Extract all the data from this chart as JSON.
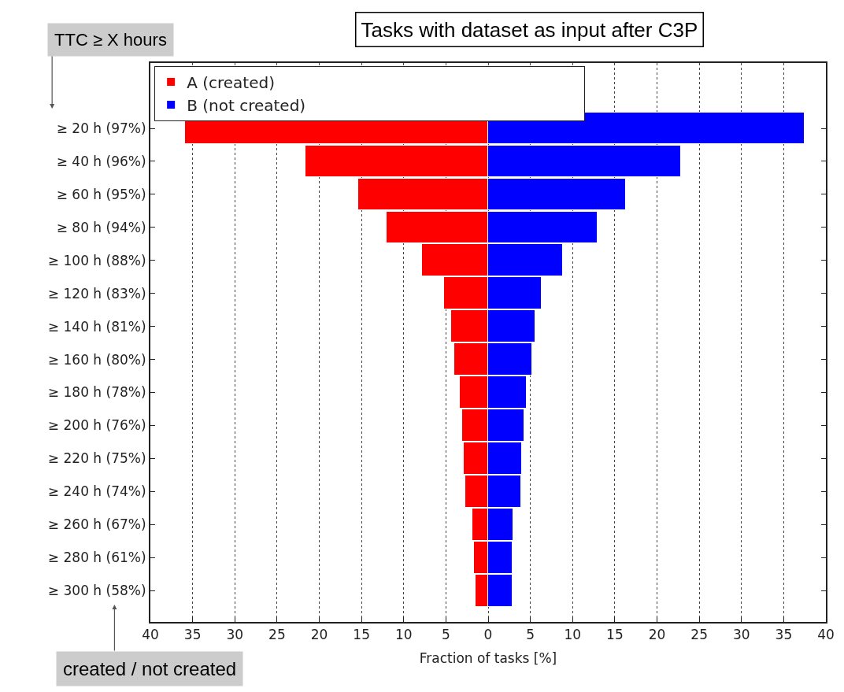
{
  "chart_data": {
    "type": "bar",
    "orientation": "horizontal",
    "title": "Tasks with dataset as input after C3P",
    "xlabel": "Fraction of tasks [%]",
    "categories": [
      "≥ 20 h (97%)",
      "≥ 40 h (96%)",
      "≥ 60 h (95%)",
      "≥ 80 h (94%)",
      "≥ 100 h (88%)",
      "≥ 120 h (83%)",
      "≥ 140 h (81%)",
      "≥ 160 h (80%)",
      "≥ 180 h (78%)",
      "≥ 200 h (76%)",
      "≥ 220 h (75%)",
      "≥ 240 h (74%)",
      "≥ 260 h (67%)",
      "≥ 280 h (61%)",
      "≥ 300 h (58%)"
    ],
    "series": [
      {
        "name": "A (created)",
        "color": "#ff0000",
        "values": [
          -35.9,
          -21.6,
          -15.4,
          -12.0,
          -7.8,
          -5.2,
          -4.4,
          -4.0,
          -3.4,
          -3.1,
          -2.9,
          -2.7,
          -1.9,
          -1.7,
          -1.5
        ]
      },
      {
        "name": "B (not created)",
        "color": "#0000ff",
        "values": [
          37.5,
          22.8,
          16.3,
          13.0,
          8.9,
          6.3,
          5.6,
          5.2,
          4.6,
          4.3,
          4.0,
          3.9,
          3.0,
          2.9,
          2.9
        ]
      }
    ],
    "xlim": [
      -40,
      40
    ],
    "xticks": [
      {
        "value": -40,
        "label": "40"
      },
      {
        "value": -35,
        "label": "35"
      },
      {
        "value": -30,
        "label": "30"
      },
      {
        "value": -25,
        "label": "25"
      },
      {
        "value": -20,
        "label": "20"
      },
      {
        "value": -15,
        "label": "15"
      },
      {
        "value": -10,
        "label": "10"
      },
      {
        "value": -5,
        "label": "5"
      },
      0,
      5,
      10,
      15,
      20,
      25,
      30,
      35,
      40
    ],
    "stacked": true,
    "grid": "x",
    "legend": "top",
    "annotations": [
      "TTC ≥ X hours",
      "created / not created"
    ]
  }
}
